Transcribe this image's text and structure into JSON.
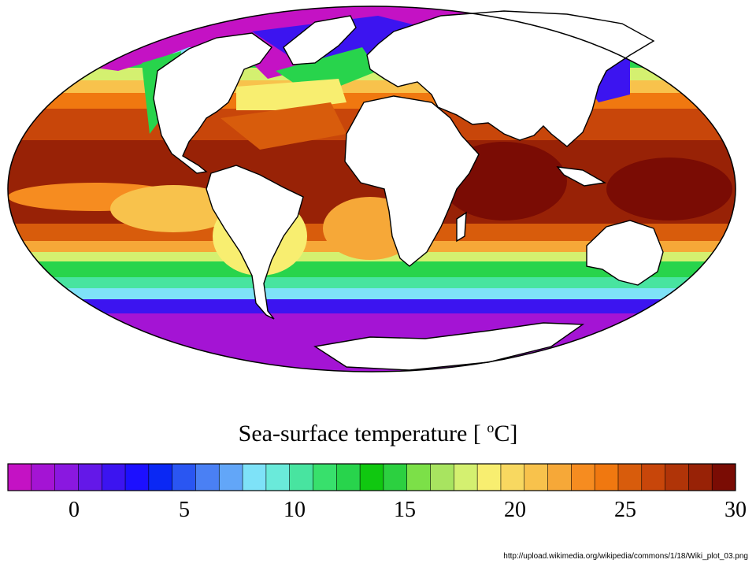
{
  "title_prefix": "Sea-surface temperature [ ",
  "title_sup": "o",
  "title_suffix": "C]",
  "colorbar": {
    "min": -3,
    "max": 30,
    "step": 1,
    "ticks": [
      "0",
      "5",
      "10",
      "15",
      "20",
      "25",
      "30"
    ],
    "tick_values": [
      0,
      5,
      10,
      15,
      20,
      25,
      30
    ]
  },
  "source_url": "http://upload.wikimedia.org/wikipedia/commons/1/18/Wiki_plot_03.png",
  "palette": [
    "#c412c4",
    "#a414d4",
    "#8a18e0",
    "#6418e8",
    "#3c14f0",
    "#1c10ff",
    "#0a28f4",
    "#2a56f2",
    "#4a80f4",
    "#62a6f8",
    "#7ee2f8",
    "#6aeada",
    "#48e4a0",
    "#38e06c",
    "#28d44c",
    "#10c810",
    "#2cd040",
    "#7ce048",
    "#a8e460",
    "#d4f070",
    "#f8ee70",
    "#f8d860",
    "#f8c24c",
    "#f6a838",
    "#f68c20",
    "#f07810",
    "#d85c0c",
    "#c8460a",
    "#b03408",
    "#982206",
    "#7a0c04"
  ]
}
